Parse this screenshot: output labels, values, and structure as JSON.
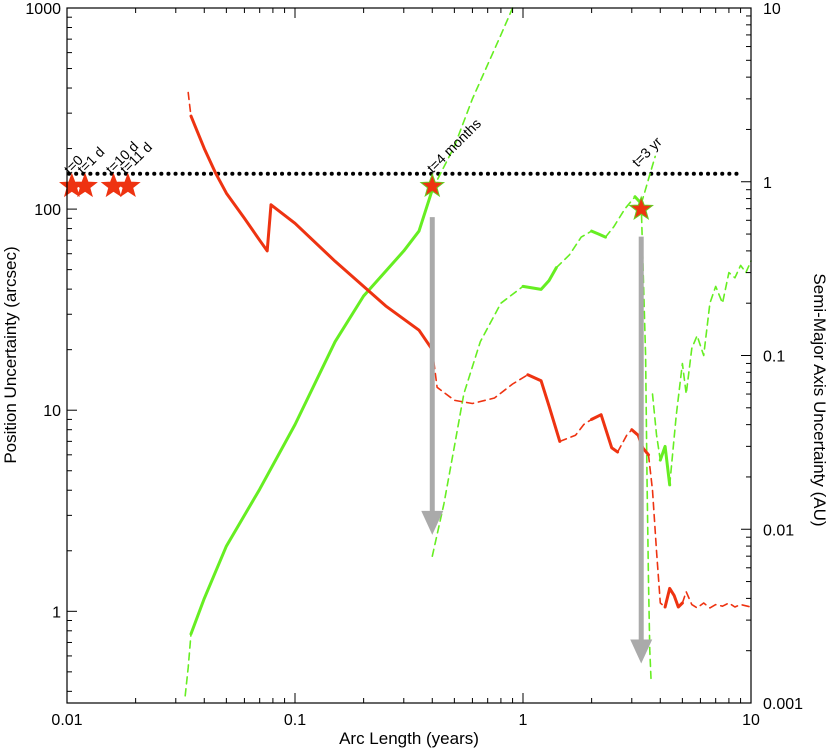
{
  "chart_data": {
    "type": "line",
    "x_scale": "log",
    "y_scale": "log",
    "y2_scale": "log",
    "xlim": [
      0.01,
      10
    ],
    "ylim": [
      0.35,
      1000
    ],
    "y2lim": [
      0.001,
      10
    ],
    "xlabel": "Arc Length (years)",
    "ylabel": "Position Uncertainty (arcsec)",
    "y2label": "Semi-Major Axis Uncertainty (AU)",
    "x_ticks": [
      {
        "value": 0.01,
        "label": "0.01"
      },
      {
        "value": 0.1,
        "label": "0.1"
      },
      {
        "value": 1,
        "label": "1"
      },
      {
        "value": 10,
        "label": "10"
      }
    ],
    "y_ticks": [
      {
        "value": 1,
        "label": "1"
      },
      {
        "value": 10,
        "label": "10"
      },
      {
        "value": 100,
        "label": "100"
      },
      {
        "value": 1000,
        "label": "1000"
      }
    ],
    "y2_ticks": [
      {
        "value": 0.001,
        "label": "0.001"
      },
      {
        "value": 0.01,
        "label": "0.01"
      },
      {
        "value": 0.1,
        "label": "0.1"
      },
      {
        "value": 1,
        "label": "1"
      },
      {
        "value": 10,
        "label": "10"
      }
    ],
    "colors": {
      "position": "#ee3311",
      "semimajor": "#66ee22",
      "threshold": "#000000",
      "arrow": "#aaaaaa",
      "star": "#ee3311",
      "star_stroke": "#66cc22"
    },
    "threshold": {
      "y": 150,
      "x_range": [
        0.01,
        9
      ],
      "style": "dotted"
    },
    "position_series": [
      {
        "style": "dashed",
        "points": [
          [
            0.034,
            380
          ],
          [
            0.0345,
            330
          ],
          [
            0.035,
            290
          ]
        ]
      },
      {
        "style": "solid",
        "points": [
          [
            0.035,
            290
          ],
          [
            0.04,
            200
          ],
          [
            0.045,
            150
          ],
          [
            0.05,
            120
          ],
          [
            0.06,
            90
          ],
          [
            0.07,
            70
          ],
          [
            0.0755,
            62
          ],
          [
            0.0785,
            105
          ],
          [
            0.1,
            85
          ],
          [
            0.15,
            55
          ],
          [
            0.25,
            33
          ],
          [
            0.35,
            25
          ],
          [
            0.4,
            20
          ]
        ]
      },
      {
        "style": "dashed",
        "points": [
          [
            0.4,
            20
          ],
          [
            0.42,
            13
          ],
          [
            0.5,
            11.2
          ],
          [
            0.6,
            10.8
          ],
          [
            0.75,
            11.5
          ],
          [
            0.9,
            13.5
          ],
          [
            1.05,
            15
          ]
        ]
      },
      {
        "style": "solid",
        "points": [
          [
            1.05,
            15
          ],
          [
            1.2,
            14
          ],
          [
            1.3,
            10.5
          ],
          [
            1.45,
            7
          ]
        ]
      },
      {
        "style": "dashed",
        "points": [
          [
            1.45,
            7
          ],
          [
            1.7,
            7.5
          ],
          [
            1.85,
            8.5
          ],
          [
            2.0,
            9
          ]
        ]
      },
      {
        "style": "solid",
        "points": [
          [
            2.0,
            9
          ],
          [
            2.2,
            9.5
          ],
          [
            2.45,
            6.5
          ],
          [
            2.6,
            6.2
          ]
        ]
      },
      {
        "style": "dashed",
        "points": [
          [
            2.6,
            6.2
          ],
          [
            2.85,
            7.5
          ],
          [
            3.0,
            8
          ]
        ]
      },
      {
        "style": "solid",
        "points": [
          [
            3.0,
            8
          ],
          [
            3.2,
            7.5
          ],
          [
            3.35,
            6.5
          ],
          [
            3.55,
            6.0
          ]
        ]
      },
      {
        "style": "dashed",
        "points": [
          [
            3.55,
            6.0
          ],
          [
            3.7,
            4.0
          ],
          [
            3.85,
            2.0
          ],
          [
            4.0,
            1.1
          ],
          [
            4.2,
            1.05
          ]
        ]
      },
      {
        "style": "solid",
        "points": [
          [
            4.2,
            1.05
          ],
          [
            4.4,
            1.3
          ],
          [
            4.6,
            1.2
          ],
          [
            4.8,
            1.05
          ],
          [
            5.0,
            1.1
          ]
        ]
      },
      {
        "style": "dashed",
        "points": [
          [
            5.0,
            1.1
          ],
          [
            5.2,
            1.25
          ],
          [
            5.5,
            1.08
          ],
          [
            5.8,
            1.04
          ],
          [
            6.2,
            1.1
          ],
          [
            6.6,
            1.04
          ],
          [
            7.0,
            1.08
          ],
          [
            7.5,
            1.06
          ],
          [
            8.0,
            1.1
          ],
          [
            8.5,
            1.05
          ],
          [
            9.0,
            1.08
          ],
          [
            10.0,
            1.05
          ]
        ]
      }
    ],
    "semimajor_series": [
      {
        "style": "dashed",
        "points": [
          [
            0.033,
            0.0011
          ],
          [
            0.034,
            0.0016
          ],
          [
            0.035,
            0.0025
          ]
        ]
      },
      {
        "style": "solid",
        "points": [
          [
            0.035,
            0.0025
          ],
          [
            0.04,
            0.004
          ],
          [
            0.05,
            0.008
          ],
          [
            0.07,
            0.017
          ],
          [
            0.1,
            0.04
          ],
          [
            0.15,
            0.12
          ],
          [
            0.2,
            0.22
          ],
          [
            0.3,
            0.4
          ],
          [
            0.35,
            0.52
          ],
          [
            0.4,
            0.9
          ]
        ]
      },
      {
        "style": "dashed",
        "points": [
          [
            0.4,
            0.9
          ],
          [
            0.5,
            1.6
          ],
          [
            0.6,
            3
          ],
          [
            0.8,
            7
          ],
          [
            0.9,
            10
          ]
        ]
      },
      {
        "style": "dashed",
        "points": [
          [
            0.4,
            0.007
          ],
          [
            0.45,
            0.014
          ],
          [
            0.5,
            0.03
          ],
          [
            0.55,
            0.06
          ],
          [
            0.65,
            0.12
          ],
          [
            0.8,
            0.2
          ],
          [
            1.0,
            0.25
          ]
        ]
      },
      {
        "style": "solid",
        "points": [
          [
            1.0,
            0.25
          ],
          [
            1.2,
            0.24
          ],
          [
            1.3,
            0.27
          ],
          [
            1.4,
            0.32
          ]
        ]
      },
      {
        "style": "dashed",
        "points": [
          [
            1.4,
            0.32
          ],
          [
            1.6,
            0.38
          ],
          [
            1.8,
            0.48
          ],
          [
            2.0,
            0.52
          ]
        ]
      },
      {
        "style": "solid",
        "points": [
          [
            2.0,
            0.52
          ],
          [
            2.15,
            0.5
          ],
          [
            2.3,
            0.48
          ]
        ]
      },
      {
        "style": "dashed",
        "points": [
          [
            2.3,
            0.48
          ],
          [
            2.5,
            0.55
          ],
          [
            2.8,
            0.7
          ],
          [
            3.1,
            0.82
          ]
        ]
      },
      {
        "style": "solid",
        "points": [
          [
            3.1,
            0.82
          ],
          [
            3.3,
            0.75
          ]
        ]
      },
      {
        "style": "dashed",
        "points": [
          [
            3.3,
            0.75
          ],
          [
            3.45,
            0.1
          ],
          [
            3.5,
            0.02
          ],
          [
            3.55,
            0.005
          ],
          [
            3.6,
            0.002
          ],
          [
            3.65,
            0.0013
          ]
        ]
      },
      {
        "style": "dashed",
        "points": [
          [
            3.3,
            0.75
          ],
          [
            3.4,
            0.85
          ],
          [
            3.6,
            1.1
          ],
          [
            3.8,
            1.4
          ]
        ]
      },
      {
        "style": "dashed",
        "points": [
          [
            3.7,
            0.06
          ],
          [
            3.85,
            0.035
          ],
          [
            4.0,
            0.025
          ]
        ]
      },
      {
        "style": "solid",
        "points": [
          [
            4.0,
            0.025
          ],
          [
            4.2,
            0.03
          ],
          [
            4.4,
            0.018
          ]
        ]
      },
      {
        "style": "dashed",
        "points": [
          [
            4.4,
            0.018
          ],
          [
            4.7,
            0.045
          ],
          [
            5.0,
            0.09
          ],
          [
            5.2,
            0.06
          ],
          [
            5.5,
            0.11
          ],
          [
            5.8,
            0.13
          ],
          [
            6.2,
            0.1
          ],
          [
            6.6,
            0.2
          ],
          [
            7.0,
            0.25
          ],
          [
            7.5,
            0.2
          ],
          [
            8.0,
            0.3
          ],
          [
            8.5,
            0.28
          ],
          [
            9.0,
            0.33
          ],
          [
            9.5,
            0.3
          ],
          [
            10.0,
            0.35
          ]
        ]
      }
    ],
    "arrows": [
      {
        "x": 0.4,
        "y_from": 100,
        "y_to": 2.4
      },
      {
        "x": 3.3,
        "y_from": 80,
        "y_to": 0.55
      }
    ],
    "stars": [
      {
        "x": 0.0105,
        "y": 130
      },
      {
        "x": 0.012,
        "y": 130
      },
      {
        "x": 0.016,
        "y": 130
      },
      {
        "x": 0.0185,
        "y": 130
      },
      {
        "x": 0.4,
        "y": 130
      },
      {
        "x": 3.3,
        "y": 100
      }
    ],
    "annotations": [
      {
        "text": "t=0",
        "x": 0.0105,
        "y": 138
      },
      {
        "text": "t=1 d",
        "x": 0.012,
        "y": 138
      },
      {
        "text": "t=10 d",
        "x": 0.016,
        "y": 138
      },
      {
        "text": "t=11 d",
        "x": 0.0185,
        "y": 138
      },
      {
        "text": "t=4 months",
        "x": 0.41,
        "y": 140
      },
      {
        "text": "t=3 yr",
        "x": 3.25,
        "y": 150
      }
    ]
  }
}
